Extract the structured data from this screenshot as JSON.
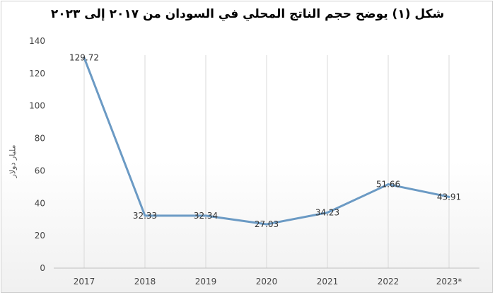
{
  "chart_data": {
    "type": "line",
    "title": "شكل (١) يوضح حجم الناتج المحلي في السودان من ٢٠١٧ إلى ٢٠٢٣",
    "ylabel": "مليار دولار",
    "xlabel": "",
    "categories": [
      "2017",
      "2018",
      "2019",
      "2020",
      "2021",
      "2022",
      "2023*"
    ],
    "series": [
      {
        "values": [
          129.72,
          32.33,
          32.34,
          27.03,
          34.23,
          51.66,
          43.91
        ],
        "labels": [
          "129.72",
          "32.33",
          "32.34",
          "27.03",
          "34.23",
          "51.66",
          "43.91"
        ],
        "color": "#6b9ac4"
      }
    ],
    "ylim": [
      0,
      140
    ],
    "yticks": [
      "0",
      "20",
      "40",
      "60",
      "80",
      "100",
      "120",
      "140"
    ],
    "grid": "vertical",
    "legend": "none"
  }
}
